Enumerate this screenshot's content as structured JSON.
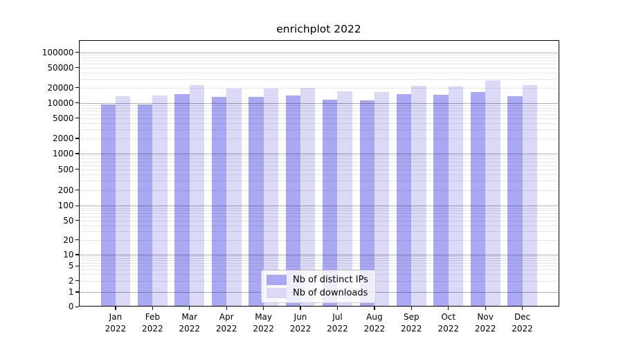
{
  "chart_data": {
    "type": "bar",
    "title": "enrichplot 2022",
    "year": "2022",
    "categories": [
      "Jan",
      "Feb",
      "Mar",
      "Apr",
      "May",
      "Jun",
      "Jul",
      "Aug",
      "Sep",
      "Oct",
      "Nov",
      "Dec"
    ],
    "series": [
      {
        "name": "Nb of distinct IPs",
        "color": "#a9a9f3",
        "values": [
          9400,
          9400,
          14900,
          13200,
          13300,
          14000,
          11500,
          11200,
          15100,
          14300,
          16300,
          13600
        ]
      },
      {
        "name": "Nb of downloads",
        "color": "#dadaf7",
        "values": [
          13500,
          13900,
          22300,
          19000,
          19400,
          20000,
          17100,
          16600,
          21800,
          21300,
          28000,
          22700
        ]
      }
    ],
    "yticks": [
      0,
      1,
      2,
      5,
      10,
      20,
      50,
      100,
      200,
      500,
      1000,
      2000,
      5000,
      10000,
      20000,
      50000,
      100000
    ],
    "yscale": "symlog",
    "ylim": [
      0,
      170000
    ],
    "grid": true,
    "legend_position": "lower center"
  }
}
